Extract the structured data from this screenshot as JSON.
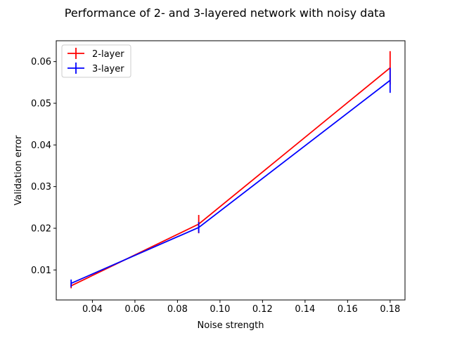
{
  "chart_data": {
    "type": "line",
    "title": "Performance of 2- and 3-layered network with noisy data",
    "xlabel": "Noise strength",
    "ylabel": "Validation error",
    "xlim": [
      0.023,
      0.187
    ],
    "ylim": [
      0.0028,
      0.065
    ],
    "xticks": [
      0.04,
      0.06,
      0.08,
      0.1,
      0.12,
      0.14,
      0.16,
      0.18
    ],
    "xtick_labels": [
      "0.04",
      "0.06",
      "0.08",
      "0.10",
      "0.12",
      "0.14",
      "0.16",
      "0.18"
    ],
    "yticks": [
      0.01,
      0.02,
      0.03,
      0.04,
      0.05,
      0.06
    ],
    "ytick_labels": [
      "0.01",
      "0.02",
      "0.03",
      "0.04",
      "0.05",
      "0.06"
    ],
    "grid": false,
    "legend_position": "upper-left",
    "x": [
      0.03,
      0.09,
      0.18
    ],
    "series": [
      {
        "name": "2-layer",
        "color": "#ff0000",
        "values": [
          0.0062,
          0.021,
          0.0585
        ],
        "errors": [
          0.0006,
          0.0022,
          0.004
        ]
      },
      {
        "name": "3-layer",
        "color": "#0000ff",
        "values": [
          0.0068,
          0.0202,
          0.0555
        ],
        "errors": [
          0.0009,
          0.0013,
          0.003
        ]
      }
    ]
  }
}
